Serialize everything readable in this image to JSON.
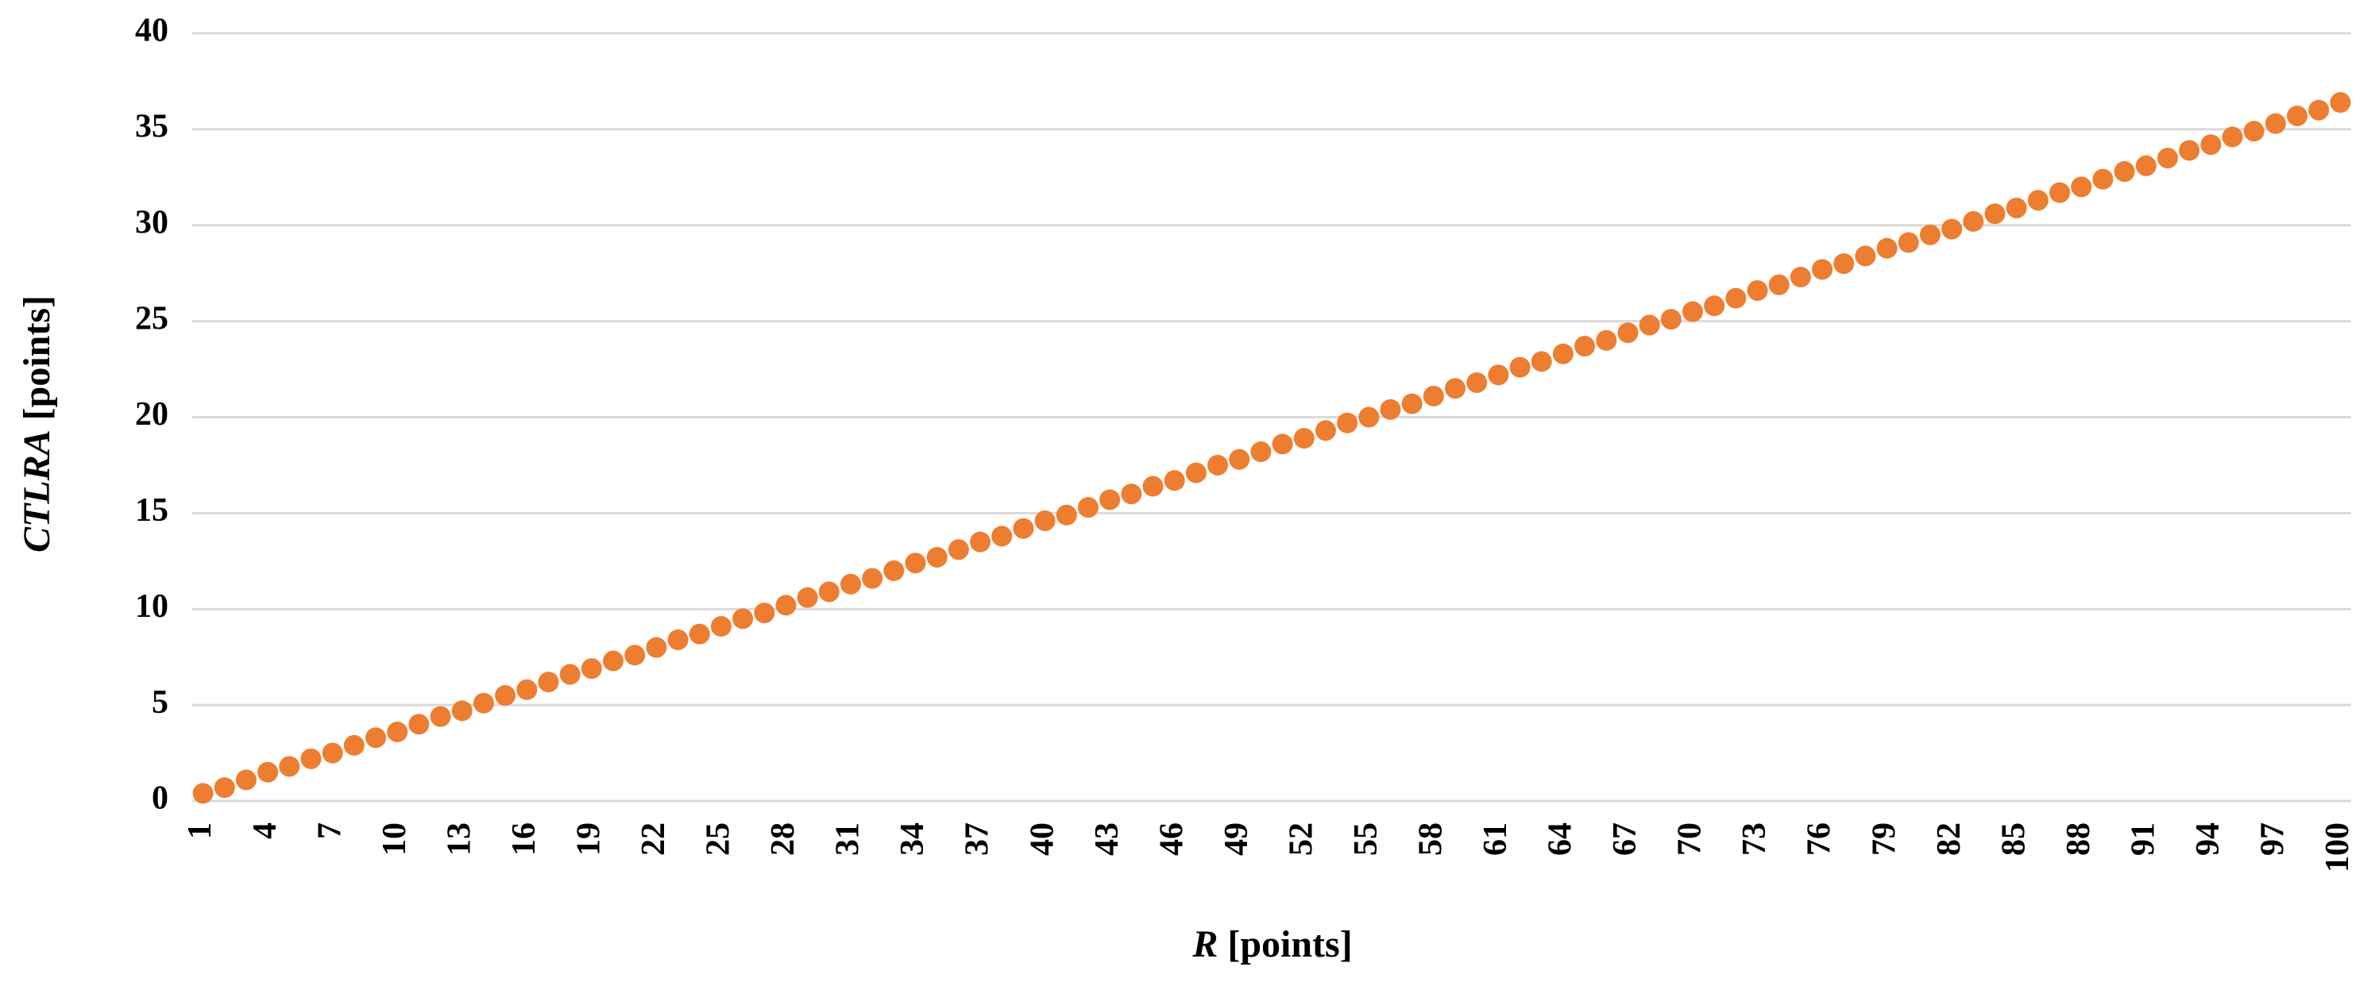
{
  "chart_data": {
    "type": "line",
    "show_line": false,
    "markers": true,
    "color": "#ed7d31",
    "grid": true,
    "xlabel": [
      "R",
      "[points]"
    ],
    "ylabel": [
      "CTLRA",
      "[points]"
    ],
    "categories": [
      1,
      null,
      null,
      4,
      null,
      null,
      7,
      null,
      null,
      10,
      null,
      null,
      13,
      null,
      null,
      16,
      null,
      null,
      19,
      null,
      null,
      22,
      null,
      null,
      25,
      null,
      null,
      28,
      null,
      null,
      31,
      null,
      null,
      34,
      null,
      null,
      37,
      null,
      null,
      40,
      null,
      null,
      43,
      null,
      null,
      46,
      null,
      null,
      49,
      null,
      null,
      52,
      null,
      null,
      55,
      null,
      null,
      58,
      null,
      null,
      61,
      null,
      null,
      64,
      null,
      null,
      67,
      null,
      null,
      70,
      null,
      null,
      73,
      null,
      null,
      76,
      null,
      null,
      79,
      null,
      null,
      82,
      null,
      null,
      85,
      null,
      null,
      88,
      null,
      null,
      91,
      null,
      null,
      94,
      null,
      null,
      97,
      null,
      null,
      100
    ],
    "values": [
      0.4,
      0.7,
      1.1,
      1.5,
      1.8,
      2.2,
      2.5,
      2.9,
      3.3,
      3.6,
      4.0,
      4.4,
      4.7,
      5.1,
      5.5,
      5.8,
      6.2,
      6.6,
      6.9,
      7.3,
      7.6,
      8.0,
      8.4,
      8.7,
      9.1,
      9.5,
      9.8,
      10.2,
      10.6,
      10.9,
      11.3,
      11.6,
      12.0,
      12.4,
      12.7,
      13.1,
      13.5,
      13.8,
      14.2,
      14.6,
      14.9,
      15.3,
      15.7,
      16.0,
      16.4,
      16.7,
      17.1,
      17.5,
      17.8,
      18.2,
      18.6,
      18.9,
      19.3,
      19.7,
      20.0,
      20.4,
      20.7,
      21.1,
      21.5,
      21.8,
      22.2,
      22.6,
      22.9,
      23.3,
      23.7,
      24.0,
      24.4,
      24.8,
      25.1,
      25.5,
      25.8,
      26.2,
      26.6,
      26.9,
      27.3,
      27.7,
      28.0,
      28.4,
      28.8,
      29.1,
      29.5,
      29.8,
      30.2,
      30.6,
      30.9,
      31.3,
      31.7,
      32.0,
      32.4,
      32.8,
      33.1,
      33.5,
      33.9,
      34.2,
      34.6,
      34.9,
      35.3,
      35.7,
      36.0,
      36.4
    ],
    "ylim": [
      0,
      40
    ],
    "yticks": [
      0,
      5,
      10,
      15,
      20,
      25,
      30,
      35,
      40
    ]
  }
}
